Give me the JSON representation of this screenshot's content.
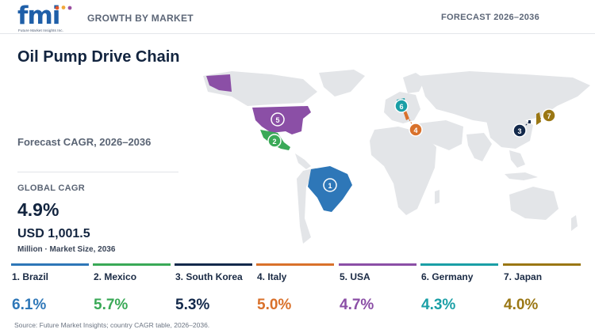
{
  "header": {
    "logo_text": "fmi",
    "logo_subtext": "Future Market Insights Inc.",
    "left_label": "GROWTH BY MARKET",
    "right_label": "FORECAST 2026–2036"
  },
  "summary": {
    "title": "Oil Pump Drive Chain",
    "subtitle": "Forecast CAGR, 2026–2036",
    "global_cagr_label": "GLOBAL CAGR",
    "global_cagr_value": "4.9%",
    "market_size_value": "USD 1,001.5",
    "market_size_label": "Million · Market Size, 2036"
  },
  "map": {
    "land_color": "#e3e5e8",
    "markers": [
      {
        "rank": "1",
        "country": "Brazil",
        "color": "#2e77b8"
      },
      {
        "rank": "2",
        "country": "Mexico",
        "color": "#3aa957"
      },
      {
        "rank": "3",
        "country": "South Korea",
        "color": "#13294b"
      },
      {
        "rank": "4",
        "country": "Italy",
        "color": "#d9712b"
      },
      {
        "rank": "5",
        "country": "USA",
        "color": "#8b4fa6"
      },
      {
        "rank": "6",
        "country": "Germany",
        "color": "#1a9fa6"
      },
      {
        "rank": "7",
        "country": "Japan",
        "color": "#9a7714"
      }
    ]
  },
  "cards": [
    {
      "label": "1. Brazil",
      "value": "6.1%",
      "color": "#2e77b8"
    },
    {
      "label": "2. Mexico",
      "value": "5.7%",
      "color": "#3aa957"
    },
    {
      "label": "3. South Korea",
      "value": "5.3%",
      "color": "#13294b"
    },
    {
      "label": "4. Italy",
      "value": "5.0%",
      "color": "#d9712b"
    },
    {
      "label": "5. USA",
      "value": "4.7%",
      "color": "#8b4fa6"
    },
    {
      "label": "6. Germany",
      "value": "4.3%",
      "color": "#1a9fa6"
    },
    {
      "label": "7. Japan",
      "value": "4.0%",
      "color": "#9a7714"
    }
  ],
  "footer": {
    "source": "Source: Future Market Insights; country CAGR table, 2026–2036."
  }
}
